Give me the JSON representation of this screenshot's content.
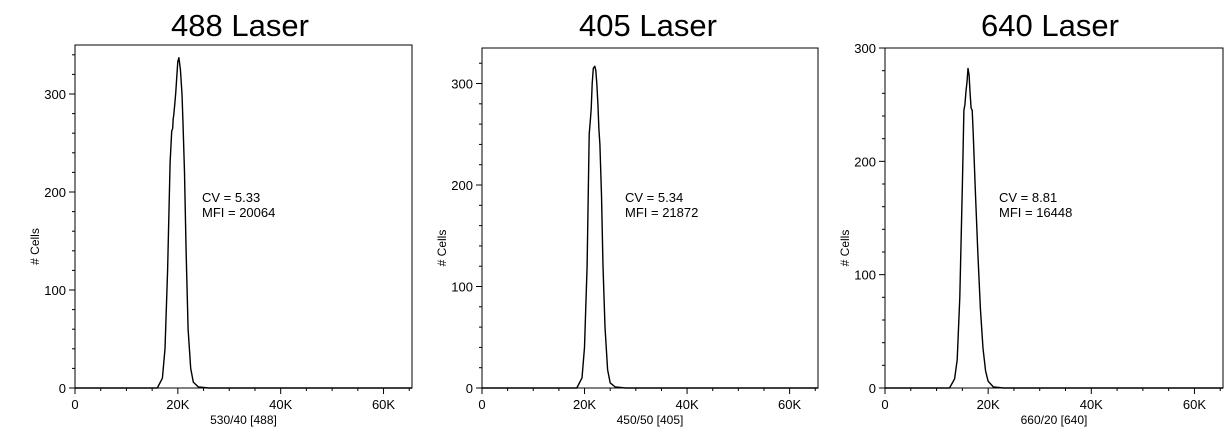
{
  "chart_data": [
    {
      "type": "histogram",
      "title": "488 Laser",
      "xlabel": "530/40 [488]",
      "ylabel": "# Cells",
      "xlim": [
        0,
        65536
      ],
      "ylim": [
        0,
        350
      ],
      "xticks": [
        0,
        20000,
        40000,
        60000
      ],
      "xtick_labels": [
        "0",
        "20K",
        "40K",
        "60K"
      ],
      "yticks": [
        0,
        100,
        200,
        300
      ],
      "ytick_labels": [
        "0",
        "100",
        "200",
        "300"
      ],
      "annotations": [
        "CV = 5.33",
        "MFI = 20064"
      ],
      "x": [
        0,
        16000,
        17000,
        17500,
        18000,
        18500,
        18800,
        19000,
        19100,
        19200,
        19400,
        19600,
        19800,
        20000,
        20200,
        20500,
        20800,
        21000,
        21300,
        21600,
        22000,
        22500,
        23000,
        24000,
        26000,
        65536
      ],
      "y": [
        0,
        0,
        10,
        40,
        120,
        230,
        262,
        265,
        275,
        278,
        290,
        302,
        318,
        333,
        337,
        325,
        300,
        270,
        220,
        140,
        60,
        20,
        6,
        1,
        0,
        0
      ]
    },
    {
      "type": "histogram",
      "title": "405 Laser",
      "xlabel": "450/50 [405]",
      "ylabel": "# Cells",
      "xlim": [
        0,
        65536
      ],
      "ylim": [
        0,
        335
      ],
      "xticks": [
        0,
        20000,
        40000,
        60000
      ],
      "xtick_labels": [
        "0",
        "20K",
        "40K",
        "60K"
      ],
      "yticks": [
        0,
        100,
        200,
        300
      ],
      "ytick_labels": [
        "0",
        "100",
        "200",
        "300"
      ],
      "annotations": [
        "CV = 5.34",
        "MFI = 21872"
      ],
      "x": [
        0,
        18500,
        19500,
        20000,
        20500,
        20900,
        21100,
        21300,
        21500,
        21700,
        22000,
        22200,
        22400,
        22600,
        22800,
        23000,
        23300,
        23600,
        24000,
        24500,
        25000,
        26000,
        28000,
        65536
      ],
      "y": [
        0,
        0,
        10,
        40,
        120,
        250,
        262,
        275,
        300,
        315,
        317,
        313,
        300,
        280,
        255,
        240,
        190,
        120,
        60,
        18,
        5,
        1,
        0,
        0
      ]
    },
    {
      "type": "histogram",
      "title": "640 Laser",
      "xlabel": "660/20 [640]",
      "ylabel": "# Cells",
      "xlim": [
        0,
        65536
      ],
      "ylim": [
        0,
        300
      ],
      "xticks": [
        0,
        20000,
        40000,
        60000
      ],
      "xtick_labels": [
        "0",
        "20K",
        "40K",
        "60K"
      ],
      "yticks": [
        0,
        100,
        200,
        300
      ],
      "ytick_labels": [
        "0",
        "100",
        "200",
        "300"
      ],
      "annotations": [
        "CV = 8.81",
        "MFI = 16448"
      ],
      "x": [
        0,
        12500,
        13500,
        14000,
        14500,
        15000,
        15300,
        15500,
        15700,
        15900,
        16100,
        16300,
        16500,
        16700,
        16900,
        17100,
        17500,
        18000,
        18500,
        19000,
        19500,
        20000,
        21000,
        23000,
        65536
      ],
      "y": [
        0,
        0,
        8,
        25,
        80,
        180,
        245,
        250,
        262,
        270,
        282,
        276,
        260,
        247,
        245,
        225,
        175,
        120,
        70,
        35,
        15,
        6,
        1,
        0,
        0
      ]
    }
  ]
}
